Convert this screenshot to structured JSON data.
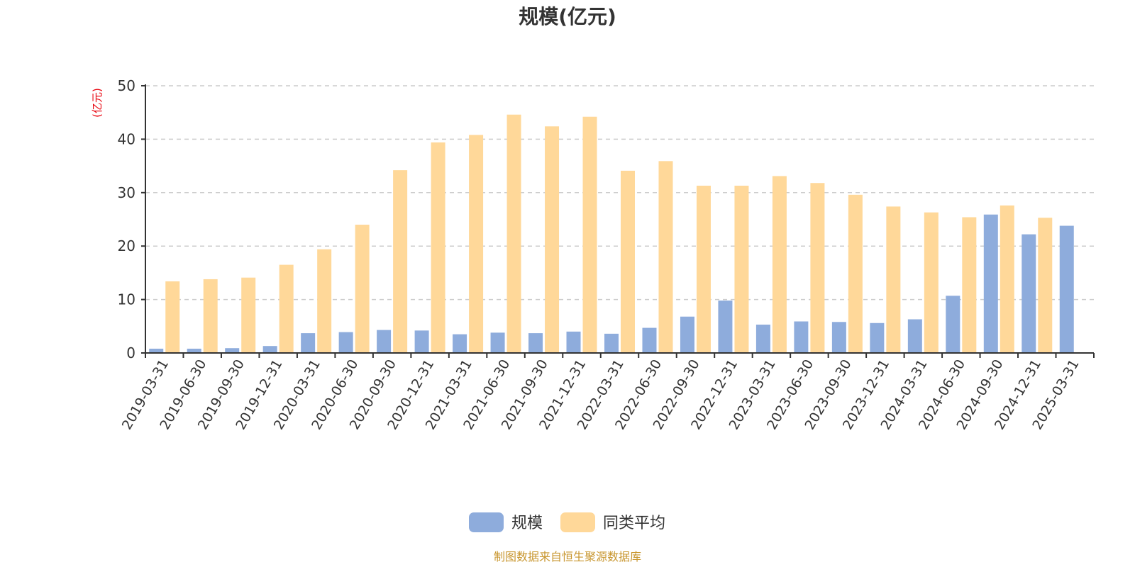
{
  "chart_data": {
    "type": "bar",
    "title": "规模(亿元)",
    "ylabel": "(亿元)",
    "ylim": [
      0,
      50
    ],
    "yticks": [
      0,
      10,
      20,
      30,
      40,
      50
    ],
    "grid": true,
    "legend_position": "bottom",
    "categories": [
      "2019-03-31",
      "2019-06-30",
      "2019-09-30",
      "2019-12-31",
      "2020-03-31",
      "2020-06-30",
      "2020-09-30",
      "2020-12-31",
      "2021-03-31",
      "2021-06-30",
      "2021-09-30",
      "2021-12-31",
      "2022-03-31",
      "2022-06-30",
      "2022-09-30",
      "2022-12-31",
      "2023-03-31",
      "2023-06-30",
      "2023-09-30",
      "2023-12-31",
      "2024-03-31",
      "2024-06-30",
      "2024-09-30",
      "2024-12-31",
      "2025-03-31"
    ],
    "series": [
      {
        "name": "规模",
        "color": "#8eacdc",
        "values": [
          0.8,
          0.8,
          0.9,
          1.3,
          3.7,
          3.9,
          4.3,
          4.2,
          3.5,
          3.8,
          3.7,
          4.0,
          3.6,
          4.7,
          6.8,
          9.8,
          5.3,
          5.9,
          5.8,
          5.6,
          6.3,
          10.7,
          25.9,
          22.2,
          23.8
        ]
      },
      {
        "name": "同类平均",
        "color": "#ffd899",
        "values": [
          13.4,
          13.8,
          14.1,
          16.5,
          19.4,
          24.0,
          34.2,
          39.4,
          40.8,
          44.6,
          42.4,
          44.2,
          34.1,
          35.9,
          31.3,
          31.3,
          33.1,
          31.8,
          29.6,
          27.4,
          26.3,
          25.4,
          27.6,
          25.3,
          null
        ]
      }
    ],
    "source": "制图数据来自恒生聚源数据库"
  }
}
